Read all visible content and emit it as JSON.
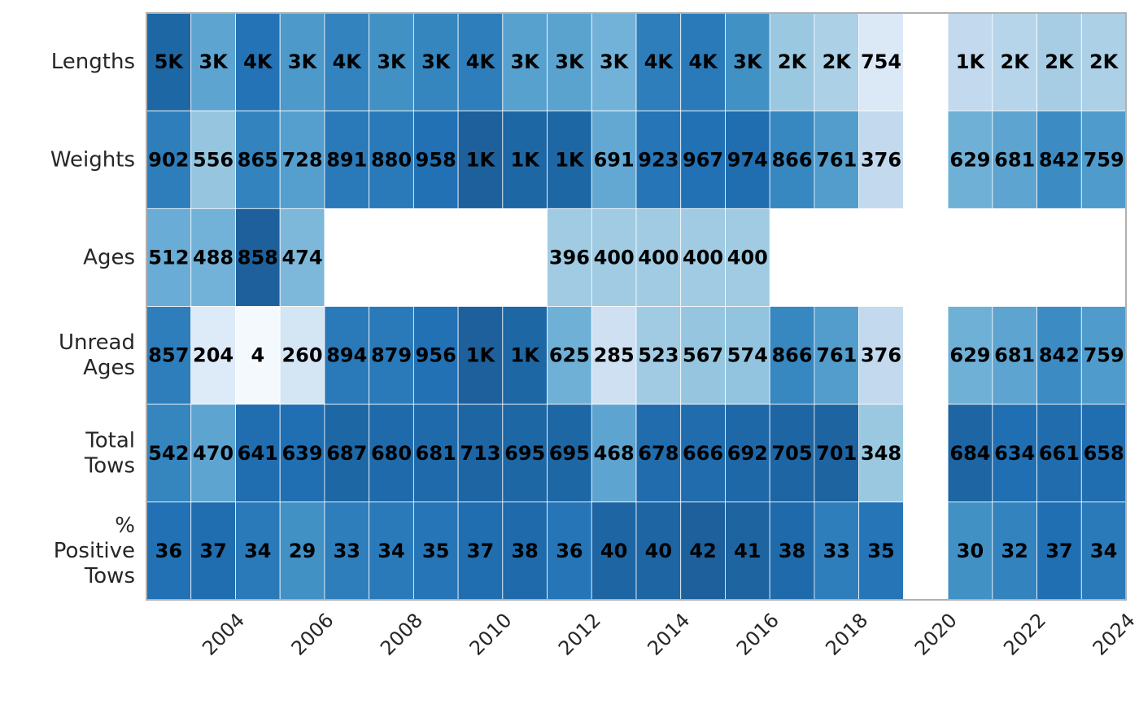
{
  "chart_data": {
    "type": "heatmap",
    "title": "",
    "xlabel": "",
    "ylabel": "",
    "years": [
      2003,
      2004,
      2005,
      2006,
      2007,
      2008,
      2009,
      2010,
      2011,
      2012,
      2013,
      2014,
      2015,
      2016,
      2017,
      2018,
      2019,
      2020,
      2021,
      2022,
      2023,
      2024
    ],
    "x_ticks": [
      "2004",
      "2006",
      "2008",
      "2010",
      "2012",
      "2014",
      "2016",
      "2018",
      "2020",
      "2022",
      "2024"
    ],
    "rows": [
      {
        "label": [
          "Lengths"
        ],
        "shades": [
          0.92,
          0.62,
          0.85,
          0.68,
          0.78,
          0.72,
          0.77,
          0.8,
          0.64,
          0.63,
          0.55,
          0.8,
          0.82,
          0.72,
          0.44,
          0.38,
          0.16,
          null,
          0.3,
          0.34,
          0.4,
          0.38
        ],
        "labels": [
          "5K",
          "3K",
          "4K",
          "3K",
          "4K",
          "3K",
          "3K",
          "4K",
          "3K",
          "3K",
          "3K",
          "4K",
          "4K",
          "3K",
          "2K",
          "2K",
          "754",
          "",
          "1K",
          "2K",
          "2K",
          "2K"
        ]
      },
      {
        "label": [
          "Weights"
        ],
        "shades": [
          0.8,
          0.45,
          0.78,
          0.65,
          0.82,
          0.82,
          0.86,
          0.96,
          0.92,
          0.92,
          0.6,
          0.84,
          0.86,
          0.88,
          0.76,
          0.66,
          0.3,
          null,
          0.56,
          0.62,
          0.74,
          0.67
        ],
        "labels": [
          "902",
          "556",
          "865",
          "728",
          "891",
          "880",
          "958",
          "1K",
          "1K",
          "1K",
          "691",
          "923",
          "967",
          "974",
          "866",
          "761",
          "376",
          "",
          "629",
          "681",
          "842",
          "759"
        ]
      },
      {
        "label": [
          "Ages"
        ],
        "shades": [
          0.58,
          0.55,
          0.96,
          0.52,
          null,
          null,
          null,
          null,
          null,
          0.42,
          0.42,
          0.42,
          0.42,
          0.42,
          null,
          null,
          null,
          null,
          null,
          null,
          null,
          null
        ],
        "labels": [
          "512",
          "488",
          "858",
          "474",
          "",
          "",
          "",
          "",
          "",
          "396",
          "400",
          "400",
          "400",
          "400",
          "",
          "",
          "",
          "",
          "",
          "",
          "",
          ""
        ]
      },
      {
        "label": [
          "Unread",
          "Ages"
        ],
        "shades": [
          0.8,
          0.15,
          0.02,
          0.2,
          0.82,
          0.82,
          0.86,
          0.96,
          0.92,
          0.56,
          0.24,
          0.42,
          0.45,
          0.46,
          0.76,
          0.66,
          0.3,
          null,
          0.56,
          0.62,
          0.74,
          0.67
        ],
        "labels": [
          "857",
          "204",
          "4",
          "260",
          "894",
          "879",
          "956",
          "1K",
          "1K",
          "625",
          "285",
          "523",
          "567",
          "574",
          "866",
          "761",
          "376",
          "",
          "629",
          "681",
          "842",
          "759"
        ]
      },
      {
        "label": [
          "Total",
          "Tows"
        ],
        "shades": [
          0.77,
          0.62,
          0.88,
          0.87,
          0.92,
          0.9,
          0.9,
          0.93,
          0.92,
          0.92,
          0.62,
          0.89,
          0.89,
          0.91,
          0.93,
          0.94,
          0.44,
          null,
          0.93,
          0.87,
          0.89,
          0.88
        ],
        "labels": [
          "542",
          "470",
          "641",
          "639",
          "687",
          "680",
          "681",
          "713",
          "695",
          "695",
          "468",
          "678",
          "666",
          "692",
          "705",
          "701",
          "348",
          "",
          "684",
          "634",
          "661",
          "658"
        ]
      },
      {
        "label": [
          "%",
          "Positive",
          "Tows"
        ],
        "shades": [
          0.86,
          0.88,
          0.82,
          0.72,
          0.8,
          0.82,
          0.84,
          0.88,
          0.9,
          0.84,
          0.93,
          0.93,
          0.96,
          0.94,
          0.9,
          0.8,
          0.84,
          null,
          0.72,
          0.78,
          0.87,
          0.82
        ],
        "labels": [
          "36",
          "37",
          "34",
          "29",
          "33",
          "34",
          "35",
          "37",
          "38",
          "36",
          "40",
          "40",
          "42",
          "41",
          "38",
          "33",
          "35",
          "",
          "30",
          "32",
          "37",
          "34"
        ]
      }
    ],
    "colormap": [
      "#f7fbff",
      "#deebf7",
      "#c6dbef",
      "#9ecae1",
      "#6baed6",
      "#4292c6",
      "#2171b5",
      "#1b5a91"
    ],
    "frame_color": "#b0b0b0",
    "grid_color": "#ffffff",
    "legend": "none"
  }
}
